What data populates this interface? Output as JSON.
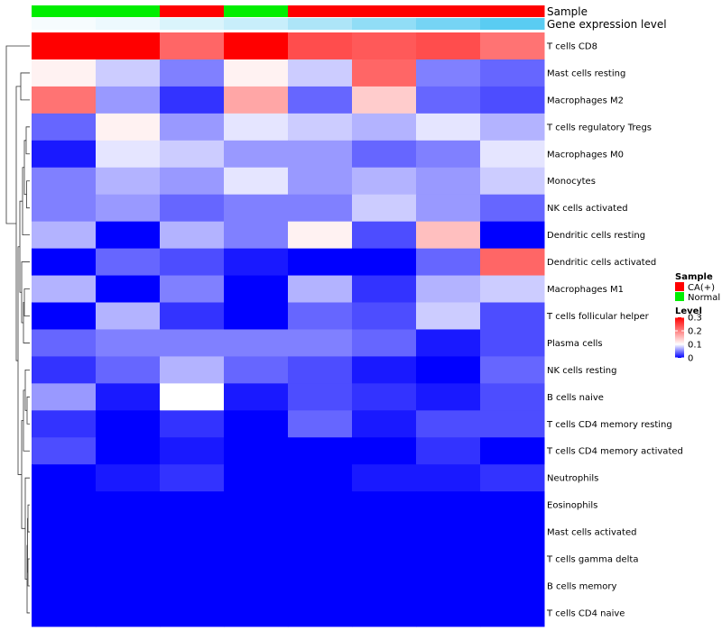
{
  "chart_data": {
    "type": "heatmap",
    "title": "",
    "annotation_labels": [
      "Sample",
      "Gene expression level"
    ],
    "sample_annotation": [
      "Normal",
      "Normal",
      "CA(+)",
      "Normal",
      "CA(+)",
      "CA(+)",
      "CA(+)",
      "CA(+)"
    ],
    "gene_expression_annotation": [
      0.05,
      0.1,
      0.2,
      0.3,
      0.45,
      0.6,
      0.75,
      0.9
    ],
    "rows": [
      "T cells CD8",
      "Mast cells resting",
      "Macrophages M2",
      "T cells regulatory  Tregs",
      "Macrophages M0",
      "Monocytes",
      "NK cells activated",
      "Dendritic cells resting",
      "Dendritic cells activated",
      "Macrophages M1",
      "T cells follicular helper",
      "Plasma cells",
      "NK cells resting",
      "B cells naive",
      "T cells CD4 memory resting",
      "T cells CD4 memory activated",
      "Neutrophils",
      "Eosinophils",
      "Mast cells activated",
      "T cells gamma delta",
      "B cells memory",
      "T cells CD4 naive"
    ],
    "values": [
      [
        0.3,
        0.31,
        0.22,
        0.3,
        0.24,
        0.23,
        0.24,
        0.21
      ],
      [
        0.11,
        0.08,
        0.05,
        0.11,
        0.08,
        0.22,
        0.05,
        0.04
      ],
      [
        0.21,
        0.06,
        0.02,
        0.17,
        0.04,
        0.14,
        0.04,
        0.03
      ],
      [
        0.04,
        0.11,
        0.06,
        0.09,
        0.08,
        0.07,
        0.09,
        0.07
      ],
      [
        0.01,
        0.09,
        0.08,
        0.06,
        0.06,
        0.04,
        0.05,
        0.09
      ],
      [
        0.05,
        0.07,
        0.06,
        0.09,
        0.06,
        0.07,
        0.06,
        0.08
      ],
      [
        0.05,
        0.06,
        0.04,
        0.05,
        0.05,
        0.08,
        0.06,
        0.04
      ],
      [
        0.07,
        0.0,
        0.07,
        0.05,
        0.11,
        0.03,
        0.15,
        0.0
      ],
      [
        0.0,
        0.04,
        0.03,
        0.01,
        0.0,
        0.0,
        0.04,
        0.22
      ],
      [
        0.07,
        0.0,
        0.05,
        0.0,
        0.07,
        0.02,
        0.07,
        0.08
      ],
      [
        0.0,
        0.07,
        0.02,
        0.0,
        0.04,
        0.03,
        0.08,
        0.03
      ],
      [
        0.04,
        0.05,
        0.05,
        0.05,
        0.05,
        0.04,
        0.01,
        0.03
      ],
      [
        0.02,
        0.04,
        0.07,
        0.04,
        0.03,
        0.01,
        0.0,
        0.04
      ],
      [
        0.06,
        0.01,
        0.1,
        0.01,
        0.03,
        0.02,
        0.01,
        0.03
      ],
      [
        0.02,
        0.0,
        0.02,
        0.0,
        0.04,
        0.01,
        0.03,
        0.03
      ],
      [
        0.03,
        0.0,
        0.01,
        0.0,
        0.0,
        0.0,
        0.02,
        0.0
      ],
      [
        0.0,
        0.01,
        0.02,
        0.0,
        0.0,
        0.01,
        0.01,
        0.02
      ],
      [
        0.0,
        0.0,
        0.0,
        0.0,
        0.0,
        0.0,
        0.0,
        0.0
      ],
      [
        0.0,
        0.0,
        0.0,
        0.0,
        0.0,
        0.0,
        0.0,
        0.0
      ],
      [
        0.0,
        0.0,
        0.0,
        0.0,
        0.0,
        0.0,
        0.0,
        0.0
      ],
      [
        0.0,
        0.0,
        0.0,
        0.0,
        0.0,
        0.0,
        0.0,
        0.0
      ],
      [
        0.0,
        0.0,
        0.0,
        0.0,
        0.0,
        0.0,
        0.0,
        0.0
      ]
    ],
    "color_scale": {
      "min": 0,
      "mid": 0.1,
      "max": 0.3,
      "low": "#0000ff",
      "midColor": "#ffffff",
      "high": "#ff0000"
    },
    "annotation_scale": {
      "low": "#ffffff",
      "high": "#48c6f0"
    },
    "legend": {
      "sample_title": "Sample",
      "sample_items": [
        {
          "label": "CA(+)",
          "color": "#ff0000"
        },
        {
          "label": "Normal",
          "color": "#00ee00"
        }
      ],
      "level_title": "Level",
      "level_ticks": [
        {
          "label": "0.3",
          "value": 0.3
        },
        {
          "label": "0.2",
          "value": 0.2
        },
        {
          "label": "0.1",
          "value": 0.1
        },
        {
          "label": "0",
          "value": 0
        }
      ]
    }
  }
}
